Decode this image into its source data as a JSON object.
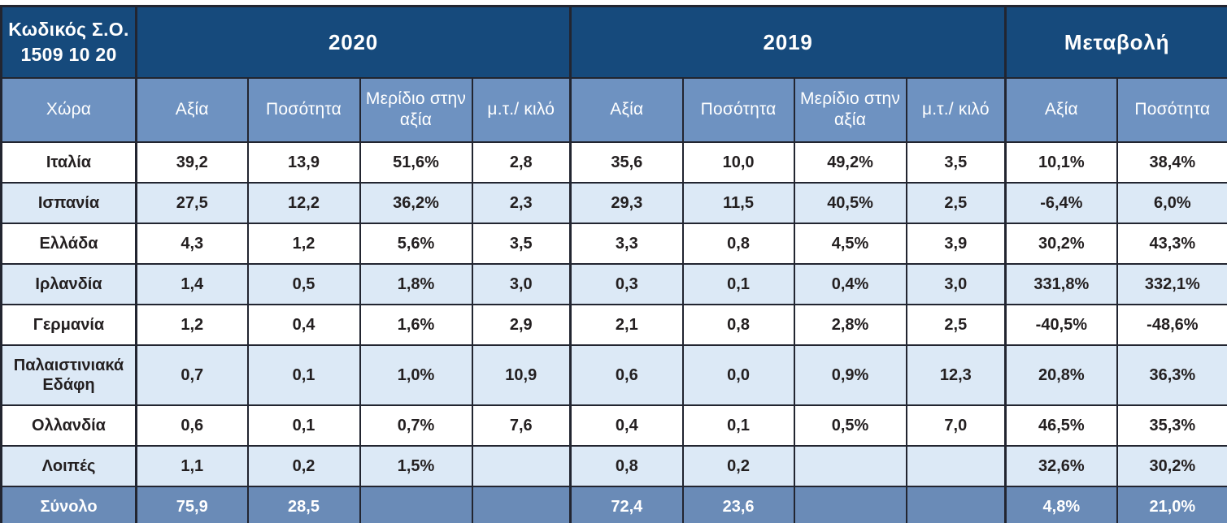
{
  "colors": {
    "header_navy": "#164A7C",
    "subheader_blue": "#6E92C1",
    "total_row_blue": "#6A8BB7",
    "stripe_light_blue": "#DCE9F6",
    "row_white": "#FFFFFF",
    "border_dark": "#222530",
    "text_dark": "#231F20",
    "text_white": "#FFFFFF"
  },
  "table": {
    "code_header": {
      "line1": "Κωδικός Σ.Ο.",
      "line2": "1509 10 20"
    },
    "year_groups": [
      "2020",
      "2019",
      "Μεταβολή"
    ],
    "subheaders": [
      "Χώρα",
      "Αξία",
      "Ποσότητα",
      "Μερίδιο στην αξία",
      "μ.τ./ κιλό",
      "Αξία",
      "Ποσότητα",
      "Μερίδιο στην αξία",
      "μ.τ./ κιλό",
      "Αξία",
      "Ποσότητα"
    ],
    "rows": [
      {
        "label": "Ιταλία",
        "cells": [
          "39,2",
          "13,9",
          "51,6%",
          "2,8",
          "35,6",
          "10,0",
          "49,2%",
          "3,5",
          "10,1%",
          "38,4%"
        ]
      },
      {
        "label": "Ισπανία",
        "cells": [
          "27,5",
          "12,2",
          "36,2%",
          "2,3",
          "29,3",
          "11,5",
          "40,5%",
          "2,5",
          "-6,4%",
          "6,0%"
        ]
      },
      {
        "label": "Ελλάδα",
        "cells": [
          "4,3",
          "1,2",
          "5,6%",
          "3,5",
          "3,3",
          "0,8",
          "4,5%",
          "3,9",
          "30,2%",
          "43,3%"
        ]
      },
      {
        "label": "Ιρλανδία",
        "cells": [
          "1,4",
          "0,5",
          "1,8%",
          "3,0",
          "0,3",
          "0,1",
          "0,4%",
          "3,0",
          "331,8%",
          "332,1%"
        ]
      },
      {
        "label": "Γερμανία",
        "cells": [
          "1,2",
          "0,4",
          "1,6%",
          "2,9",
          "2,1",
          "0,8",
          "2,8%",
          "2,5",
          "-40,5%",
          "-48,6%"
        ]
      },
      {
        "label": "Παλαιστινιακά Εδάφη",
        "cells": [
          "0,7",
          "0,1",
          "1,0%",
          "10,9",
          "0,6",
          "0,0",
          "0,9%",
          "12,3",
          "20,8%",
          "36,3%"
        ]
      },
      {
        "label": "Ολλανδία",
        "cells": [
          "0,6",
          "0,1",
          "0,7%",
          "7,6",
          "0,4",
          "0,1",
          "0,5%",
          "7,0",
          "46,5%",
          "35,3%"
        ]
      },
      {
        "label": "Λοιπές",
        "cells": [
          "1,1",
          "0,2",
          "1,5%",
          "",
          "0,8",
          "0,2",
          "",
          "",
          "32,6%",
          "30,2%"
        ]
      },
      {
        "label": "Σύνολο",
        "total": true,
        "cells": [
          "75,9",
          "28,5",
          "",
          "",
          "72,4",
          "23,6",
          "",
          "",
          "4,8%",
          "21,0%"
        ]
      }
    ]
  },
  "chart_data": {
    "type": "table",
    "title": "Κωδικός Σ.Ο. 1509 10 20",
    "column_groups": [
      "2020",
      "2019",
      "Μεταβολή"
    ],
    "columns": [
      "Χώρα",
      "Αξία 2020",
      "Ποσότητα 2020",
      "Μερίδιο στην αξία 2020",
      "μ.τ./ κιλό 2020",
      "Αξία 2019",
      "Ποσότητα 2019",
      "Μερίδιο στην αξία 2019",
      "μ.τ./ κιλό 2019",
      "Μεταβολή Αξία",
      "Μεταβολή Ποσότητα"
    ],
    "rows": [
      [
        "Ιταλία",
        "39,2",
        "13,9",
        "51,6%",
        "2,8",
        "35,6",
        "10,0",
        "49,2%",
        "3,5",
        "10,1%",
        "38,4%"
      ],
      [
        "Ισπανία",
        "27,5",
        "12,2",
        "36,2%",
        "2,3",
        "29,3",
        "11,5",
        "40,5%",
        "2,5",
        "-6,4%",
        "6,0%"
      ],
      [
        "Ελλάδα",
        "4,3",
        "1,2",
        "5,6%",
        "3,5",
        "3,3",
        "0,8",
        "4,5%",
        "3,9",
        "30,2%",
        "43,3%"
      ],
      [
        "Ιρλανδία",
        "1,4",
        "0,5",
        "1,8%",
        "3,0",
        "0,3",
        "0,1",
        "0,4%",
        "3,0",
        "331,8%",
        "332,1%"
      ],
      [
        "Γερμανία",
        "1,2",
        "0,4",
        "1,6%",
        "2,9",
        "2,1",
        "0,8",
        "2,8%",
        "2,5",
        "-40,5%",
        "-48,6%"
      ],
      [
        "Παλαιστινιακά Εδάφη",
        "0,7",
        "0,1",
        "1,0%",
        "10,9",
        "0,6",
        "0,0",
        "0,9%",
        "12,3",
        "20,8%",
        "36,3%"
      ],
      [
        "Ολλανδία",
        "0,6",
        "0,1",
        "0,7%",
        "7,6",
        "0,4",
        "0,1",
        "0,5%",
        "7,0",
        "46,5%",
        "35,3%"
      ],
      [
        "Λοιπές",
        "1,1",
        "0,2",
        "1,5%",
        "",
        "0,8",
        "0,2",
        "",
        "",
        "32,6%",
        "30,2%"
      ],
      [
        "Σύνολο",
        "75,9",
        "28,5",
        "",
        "",
        "72,4",
        "23,6",
        "",
        "",
        "4,8%",
        "21,0%"
      ]
    ]
  }
}
